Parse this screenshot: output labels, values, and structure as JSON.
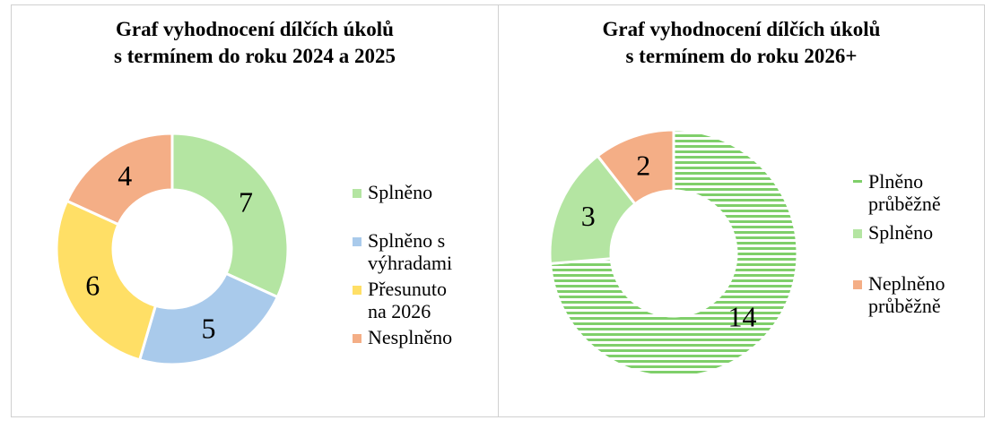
{
  "chart_data": [
    {
      "type": "pie",
      "variant": "donut",
      "title_lines": [
        "Graf vyhodnocení dílčích úkolů",
        "s termínem do roku 2024 a 2025"
      ],
      "categories": [
        "Splněno",
        "Splněno s výhradami",
        "Přesunuto na 2026",
        "Nesplněno"
      ],
      "legend_lines": [
        [
          "Splněno"
        ],
        [
          "Splněno s",
          "výhradami"
        ],
        [
          "Přesunuto",
          "na 2026"
        ],
        [
          "Nesplněno"
        ]
      ],
      "values": [
        7,
        5,
        6,
        4
      ],
      "colors": [
        "#b4e5a2",
        "#a9caeb",
        "#ffdf66",
        "#f4ae86"
      ],
      "patterns": [
        "solid",
        "solid",
        "solid",
        "solid"
      ],
      "data_labels": [
        "7",
        "5",
        "6",
        "4"
      ],
      "legend_position": "right"
    },
    {
      "type": "pie",
      "variant": "donut",
      "title_lines": [
        "Graf vyhodnocení dílčích úkolů",
        "s termínem do roku 2026+"
      ],
      "categories": [
        "Plněno průběžně",
        "Splněno",
        "Neplněno průběžně"
      ],
      "legend_lines": [
        [
          "Plněno",
          "průběžně"
        ],
        [
          "Splněno"
        ],
        [
          "Neplněno",
          "průběžně"
        ]
      ],
      "values": [
        14,
        3,
        2
      ],
      "colors": [
        "#7fcf6a",
        "#b4e5a2",
        "#f4ae86"
      ],
      "patterns": [
        "striped",
        "solid",
        "solid"
      ],
      "data_labels": [
        "14",
        "3",
        "2"
      ],
      "legend_position": "right"
    }
  ]
}
